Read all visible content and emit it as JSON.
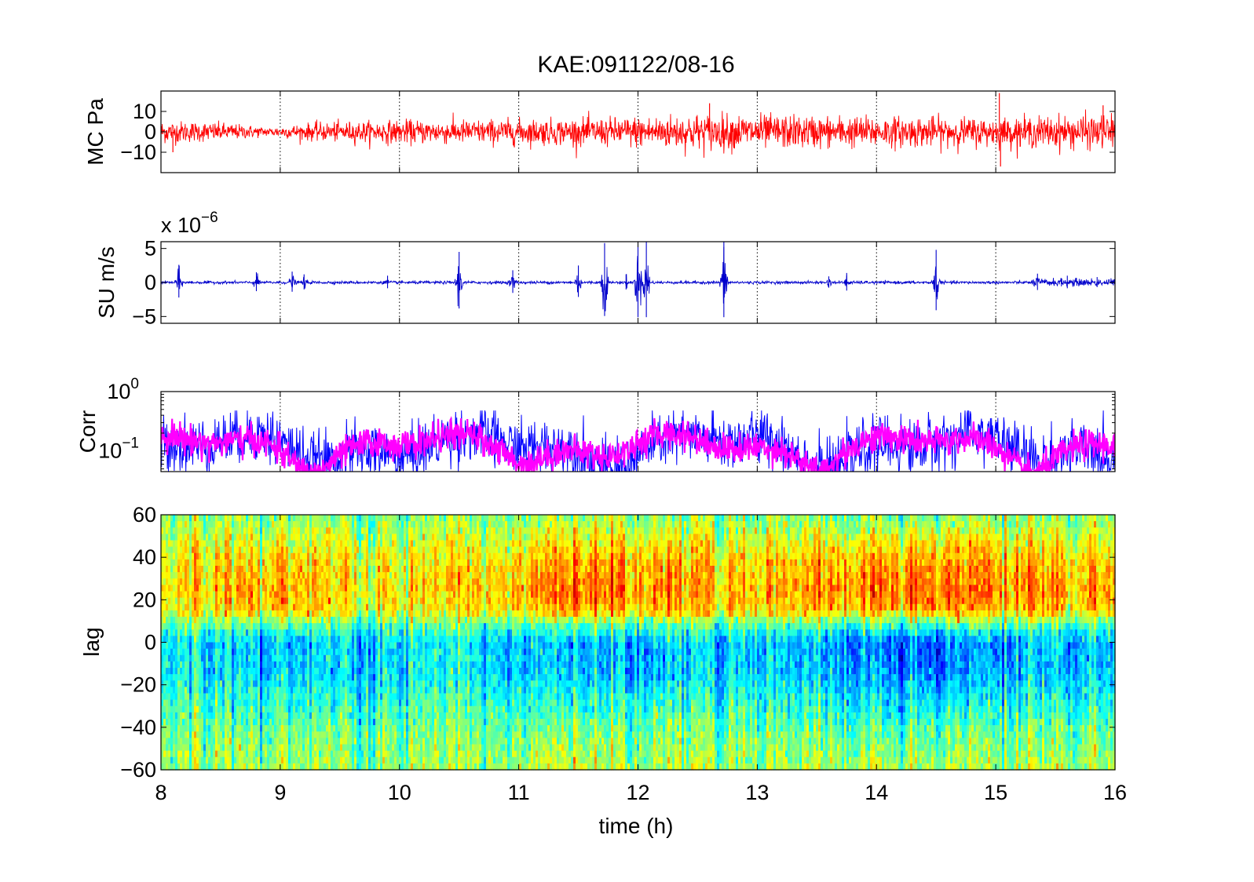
{
  "figure": {
    "title": "KAE:091122/08-16",
    "xlabel": "time (h)",
    "x_ticks": [
      8,
      9,
      10,
      11,
      12,
      13,
      14,
      15,
      16
    ],
    "xlim": [
      8,
      16
    ]
  },
  "chart_data": [
    {
      "id": "mc",
      "type": "line",
      "ylabel": "MC Pa",
      "ylim": [
        -20,
        20
      ],
      "y_ticks": [
        -10,
        0,
        10
      ],
      "y_tick_labels": [
        "−10",
        "0",
        "10"
      ],
      "grid": "x-dotted",
      "series": [
        {
          "color": "#ff0000",
          "envelope": {
            "x": [
              8,
              8.5,
              8.9,
              9.3,
              10,
              11,
              11.7,
              12.5,
              13.5,
              14.5,
              15,
              15.5,
              16
            ],
            "amplitude": [
              5,
              4,
              2,
              4,
              5,
              5.5,
              6,
              8,
              7,
              6.5,
              6,
              7,
              7.5
            ]
          }
        }
      ],
      "spikes": [
        {
          "x": 15.03,
          "y": 19
        },
        {
          "x": 15.04,
          "y": -17
        },
        {
          "x": 12.6,
          "y": 14
        },
        {
          "x": 8.1,
          "y": -10
        },
        {
          "x": 15.9,
          "y": 13
        }
      ]
    },
    {
      "id": "su",
      "type": "line",
      "ylabel": "SU m/s",
      "exponent_label": "x 10",
      "exponent_value": "−6",
      "ylim": [
        -6,
        6
      ],
      "y_ticks": [
        -5,
        0,
        5
      ],
      "y_tick_labels": [
        "−5",
        "0",
        "5"
      ],
      "grid": "x-dotted",
      "series": [
        {
          "color": "#0000cc",
          "baseline_amplitude": 0.35
        }
      ],
      "events": [
        {
          "x": 8.15,
          "amp": 2.6
        },
        {
          "x": 8.8,
          "amp": 1.5
        },
        {
          "x": 9.1,
          "amp": 1.6
        },
        {
          "x": 9.2,
          "amp": 1.2
        },
        {
          "x": 9.9,
          "amp": 1.0
        },
        {
          "x": 10.5,
          "amp": 4.5
        },
        {
          "x": 10.95,
          "amp": 1.8
        },
        {
          "x": 11.5,
          "amp": 2.5
        },
        {
          "x": 11.72,
          "amp": 5.8
        },
        {
          "x": 11.9,
          "amp": 1.2
        },
        {
          "x": 12.0,
          "amp": 6.0
        },
        {
          "x": 12.07,
          "amp": 6.0
        },
        {
          "x": 12.72,
          "amp": 6.0
        },
        {
          "x": 13.6,
          "amp": 0.9
        },
        {
          "x": 13.75,
          "amp": 1.4
        },
        {
          "x": 14.5,
          "amp": 4.8
        },
        {
          "x": 15.35,
          "amp": 1.3
        },
        {
          "x": 15.6,
          "amp": 1.0
        },
        {
          "x": 15.85,
          "amp": 0.8
        }
      ]
    },
    {
      "id": "corr",
      "type": "line",
      "ylabel": "Corr",
      "y_scale": "log",
      "ylim": [
        0.045,
        1
      ],
      "y_tick_labels": [
        {
          "base": "10",
          "exp": "0",
          "value": 1
        },
        {
          "base": "10",
          "exp": "−1",
          "value": 0.1
        }
      ],
      "grid": "x-dotted",
      "series": [
        {
          "color": "#0000ff",
          "mean": 0.16,
          "spread": "wide"
        },
        {
          "color": "#ff00ff",
          "mean": 0.15,
          "spread": "narrow"
        }
      ]
    },
    {
      "id": "lag",
      "type": "heatmap",
      "ylabel": "lag",
      "ylim": [
        -60,
        60
      ],
      "y_ticks": [
        -60,
        -40,
        -20,
        0,
        20,
        40,
        60
      ],
      "y_tick_labels": [
        "−60",
        "−40",
        "−20",
        "0",
        "20",
        "40",
        "60"
      ],
      "colormap": "jet",
      "band_profile": {
        "lag": [
          60,
          45,
          35,
          25,
          15,
          8,
          0,
          -15,
          -30,
          -45,
          -60
        ],
        "value": [
          0.5,
          0.65,
          0.72,
          0.75,
          0.7,
          0.45,
          0.28,
          0.3,
          0.4,
          0.5,
          0.55
        ]
      }
    }
  ]
}
